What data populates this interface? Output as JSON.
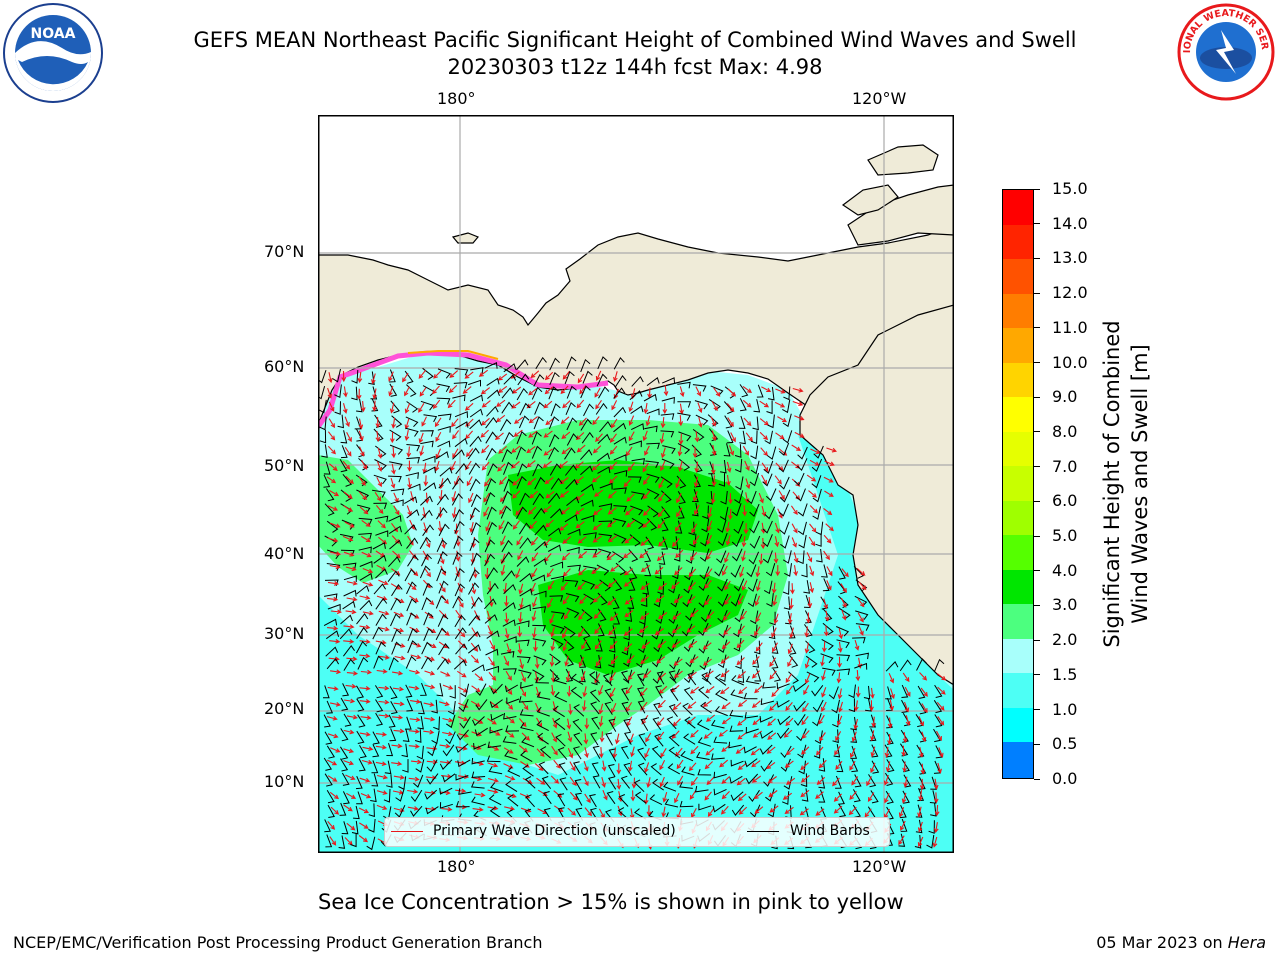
{
  "title": {
    "line1": "GEFS MEAN Northeast Pacific Significant Height of Combined Wind Waves and Swell",
    "line2": "20230303 t12z 144h fcst   Max: 4.98"
  },
  "logos": {
    "left": {
      "icon": "noaa-logo-icon",
      "text": "NOAA"
    },
    "right": {
      "icon": "nws-logo-icon",
      "text": "NATIONAL WEATHER SERVICE"
    }
  },
  "axes": {
    "top_lon_ticks": [
      "180°",
      "120°W"
    ],
    "bottom_lon_ticks": [
      "180°",
      "120°W"
    ],
    "lat_ticks": [
      "70°N",
      "60°N",
      "50°N",
      "40°N",
      "30°N",
      "20°N",
      "10°N"
    ]
  },
  "legend": {
    "primary_wave": "Primary Wave Direction (unscaled)",
    "wind_barbs": "Wind Barbs",
    "wave_color": "#e8191c",
    "barb_color": "#000000"
  },
  "colorbar": {
    "label_line1": "Significant Height of Combined",
    "label_line2": "Wind Waves and Swell [m]",
    "ticks": [
      "15.0",
      "14.0",
      "13.0",
      "12.0",
      "11.0",
      "10.0",
      "9.0",
      "8.0",
      "7.0",
      "6.0",
      "5.0",
      "4.0",
      "3.0",
      "2.0",
      "1.5",
      "1.0",
      "0.5",
      "0.0"
    ],
    "colors": [
      "#ff0000",
      "#ff2400",
      "#ff5200",
      "#ff7d00",
      "#ffa800",
      "#ffd400",
      "#ffff00",
      "#e6ff00",
      "#c8ff00",
      "#9fff00",
      "#55ff00",
      "#00e600",
      "#4cff7f",
      "#a8fffb",
      "#4dfff5",
      "#00ffff",
      "#007fff",
      "#0000ff"
    ]
  },
  "colors": {
    "land": "#efebd8",
    "ocean_light": "#a8fffb",
    "ocean_mid": "#4dfff5",
    "waves_3_4": "#4cff7f",
    "waves_4_5": "#00e600",
    "ice": "#ff52d8",
    "grid": "#aaaaaa"
  },
  "notes": {
    "sea_ice": "Sea Ice Concentration > 15% is shown in pink to yellow"
  },
  "footer": {
    "left": "NCEP/EMC/Verification Post Processing Product Generation Branch",
    "date": "05 Mar 2023 on ",
    "host": "Hera"
  }
}
